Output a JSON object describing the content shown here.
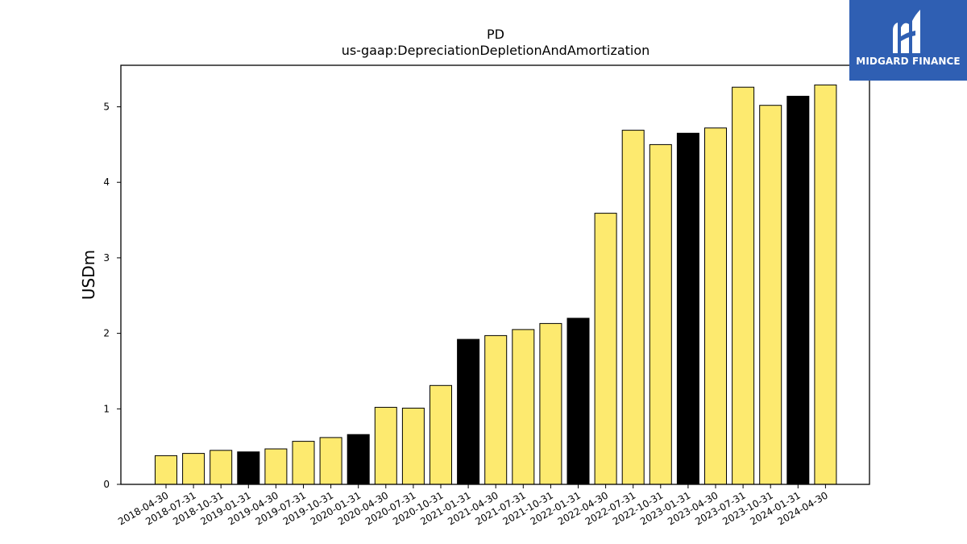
{
  "brand": {
    "name": "MIDGARD FINANCE",
    "background": "#2f5fb3"
  },
  "chart_data": {
    "type": "bar",
    "title": "PD",
    "subtitle": "us-gaap:DepreciationDepletionAndAmortization",
    "xlabel": "",
    "ylabel": "USDm",
    "ylim": [
      0,
      5.55
    ],
    "yticks": [
      0,
      1,
      2,
      3,
      4,
      5
    ],
    "grid": false,
    "categories": [
      "2018-04-30",
      "2018-07-31",
      "2018-10-31",
      "2019-01-31",
      "2019-04-30",
      "2019-07-31",
      "2019-10-31",
      "2020-01-31",
      "2020-04-30",
      "2020-07-31",
      "2020-10-31",
      "2021-01-31",
      "2021-04-30",
      "2021-07-31",
      "2021-10-31",
      "2022-01-31",
      "2022-04-30",
      "2022-07-31",
      "2022-10-31",
      "2023-01-31",
      "2023-04-30",
      "2023-07-31",
      "2023-10-31",
      "2024-01-31",
      "2024-04-30"
    ],
    "values": [
      0.38,
      0.41,
      0.45,
      0.43,
      0.47,
      0.57,
      0.62,
      0.66,
      1.02,
      1.01,
      1.31,
      1.92,
      1.97,
      2.05,
      2.13,
      2.2,
      3.59,
      4.69,
      4.5,
      4.65,
      4.72,
      5.26,
      5.02,
      5.14,
      5.29
    ],
    "bar_colors": [
      "yellow",
      "yellow",
      "yellow",
      "black",
      "yellow",
      "yellow",
      "yellow",
      "black",
      "yellow",
      "yellow",
      "yellow",
      "black",
      "yellow",
      "yellow",
      "yellow",
      "black",
      "yellow",
      "yellow",
      "yellow",
      "black",
      "yellow",
      "yellow",
      "yellow",
      "black",
      "yellow"
    ],
    "colors": {
      "yellow": "#fdea6f",
      "black": "#000000",
      "edge": "#000000"
    }
  }
}
